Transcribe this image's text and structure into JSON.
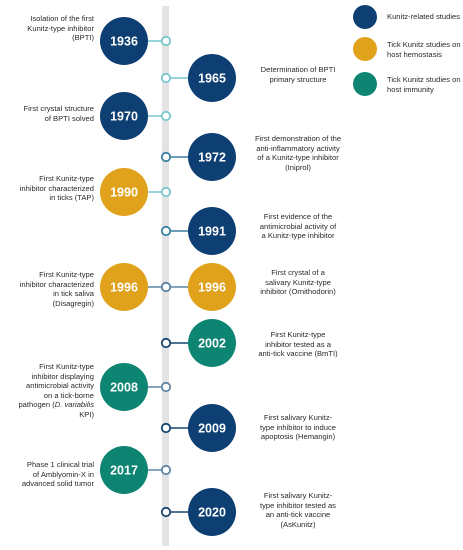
{
  "colors": {
    "kunitz": "#0d3f73",
    "hemostasis": "#e0a21b",
    "immunity": "#0e8472",
    "axis": "#e3e3e3",
    "node_light": "#79c6cf",
    "node_mid": "#3b7fa3",
    "node_dark": "#16466f",
    "node_gray": "#5f86a6"
  },
  "legend": [
    {
      "label": "Kunitz-related studies",
      "category": "kunitz"
    },
    {
      "label": "Tick Kunitz studies on host hemostasis",
      "category": "hemostasis"
    },
    {
      "label": "Tick Kunitz studies on host immunity",
      "category": "immunity"
    }
  ],
  "events": [
    {
      "year": "1936",
      "side": "left",
      "category": "kunitz",
      "node": "node_light",
      "text": [
        "Isolation of the first",
        "Kunitz-type inhibitor",
        "(BPTI)"
      ]
    },
    {
      "year": "1965",
      "side": "right",
      "category": "kunitz",
      "node": "node_light",
      "text": [
        "Determination of BPTI",
        "primary structure"
      ]
    },
    {
      "year": "1970",
      "side": "left",
      "category": "kunitz",
      "node": "node_light",
      "text": [
        "First crystal structure",
        "of BPTI solved"
      ]
    },
    {
      "year": "1972",
      "side": "right",
      "category": "kunitz",
      "node": "node_mid",
      "text": [
        "First demonstration of the",
        "anti-inflammatory activity",
        "of a Kunitz-type inhibitor",
        "(Iniprol)"
      ]
    },
    {
      "year": "1990",
      "side": "left",
      "category": "hemostasis",
      "node": "node_light",
      "text": [
        "First Kunitz-type",
        "inhibitor characterized",
        "in ticks (TAP)"
      ]
    },
    {
      "year": "1991",
      "side": "right",
      "category": "kunitz",
      "node": "node_mid",
      "text": [
        "First evidence of the",
        "antimicrobial activity of",
        "a Kunitz-type inhibitor"
      ]
    },
    {
      "year": "1996",
      "side": "left",
      "category": "hemostasis",
      "node": "node_gray",
      "text": [
        "First Kunitz-type",
        "inhibitor characterized",
        "in tick saliva",
        "(Disagregin)"
      ]
    },
    {
      "year": "1996",
      "side": "right",
      "category": "hemostasis",
      "node": "node_gray",
      "text": [
        "First crystal of a",
        "salivary Kunitz-type",
        "inhibitor (Ornithodorin)"
      ]
    },
    {
      "year": "2002",
      "side": "right",
      "category": "immunity",
      "node": "node_dark",
      "text": [
        "First Kunitz-type",
        "inhibitor tested as a",
        "anti-tick vaccine (BmTI)"
      ]
    },
    {
      "year": "2008",
      "side": "left",
      "category": "immunity",
      "node": "node_gray",
      "text": [
        "First Kunitz-type",
        "inhibitor displaying",
        "antimicrobial activity",
        "on a tick-borne",
        "pathogen (D. variabilis",
        "KPI)"
      ]
    },
    {
      "year": "2009",
      "side": "right",
      "category": "kunitz",
      "node": "node_dark",
      "text": [
        "First salivary Kunitz-",
        "type inhibitor to induce",
        "apoptosis (Hemangin)"
      ]
    },
    {
      "year": "2017",
      "side": "left",
      "category": "immunity",
      "node": "node_gray",
      "text": [
        "Phase 1 clinical trial",
        "of Amblyomin-X in",
        "advanced solid tumor"
      ]
    },
    {
      "year": "2020",
      "side": "right",
      "category": "kunitz",
      "node": "node_dark",
      "text": [
        "First salivary Kunitz-",
        "type inhibitor tested as",
        "an anti-tick vaccine",
        "(AsKunitz)"
      ]
    }
  ]
}
